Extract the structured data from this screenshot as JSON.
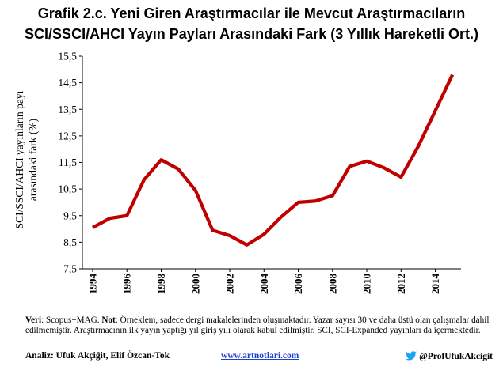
{
  "title_lines": [
    "Grafik 2.c. Yeni Giren Araştırmacılar ile Mevcut Araştırmacıların",
    "SCI/SSCI/AHCI Yayın Payları Arasındaki Fark (3 Yıllık Hareketli Ort.)"
  ],
  "chart_data": {
    "type": "line",
    "title": "Grafik 2.c. Yeni Giren Araştırmacılar ile Mevcut Araştırmacıların SCI/SSCI/AHCI Yayın Payları Arasındaki Fark (3 Yıllık Hareketli Ort.)",
    "ylabel_lines": [
      "SCI/SSCI/AHCI yayınların payı",
      "arasındaki fark (%)"
    ],
    "xlabel": "",
    "x": [
      1994,
      1995,
      1996,
      1997,
      1998,
      1999,
      2000,
      2001,
      2002,
      2003,
      2004,
      2005,
      2006,
      2007,
      2008,
      2009,
      2010,
      2011,
      2012,
      2013,
      2014,
      2015
    ],
    "series": [
      {
        "values": [
          9.05,
          9.4,
          9.5,
          10.85,
          11.6,
          11.25,
          10.45,
          8.95,
          8.75,
          8.4,
          8.8,
          9.45,
          10.0,
          10.05,
          10.25,
          11.35,
          11.55,
          11.3,
          10.95,
          12.1,
          13.45,
          14.8
        ],
        "color": "#c00000"
      }
    ],
    "ylim": [
      7.5,
      15.5
    ],
    "yticks": [
      "7,5",
      "8,5",
      "9,5",
      "10,5",
      "11,5",
      "12,5",
      "13,5",
      "14,5",
      "15,5"
    ],
    "xticks": [
      "1994",
      "1996",
      "1998",
      "2000",
      "2002",
      "2004",
      "2006",
      "2008",
      "2010",
      "2012",
      "2014"
    ],
    "grid": false,
    "legend": "none"
  },
  "footer": {
    "veri_label": "Veri",
    "veri_text": ": Scopus+MAG. ",
    "not_label": "Not",
    "not_text": ": Örneklem, sadece dergi makalelerinden oluşmaktadır. Yazar sayısı 30 ve daha üstü olan çalışmalar dahil edilmemiştir. Araştırmacının ilk yayın yaptığı yıl giriş yılı olarak kabul edilmiştir. SCI, SCI-Expanded yayınları da içermektedir.",
    "analiz": "Analiz: Ufuk Akçiğit, Elif Özcan-Tok",
    "website": "www.artnotlari.com",
    "twitter_icon": "twitter-bird-icon",
    "twitter_handle": "@ProfUfukAkcigit",
    "accent_color": "#1da1f2"
  }
}
